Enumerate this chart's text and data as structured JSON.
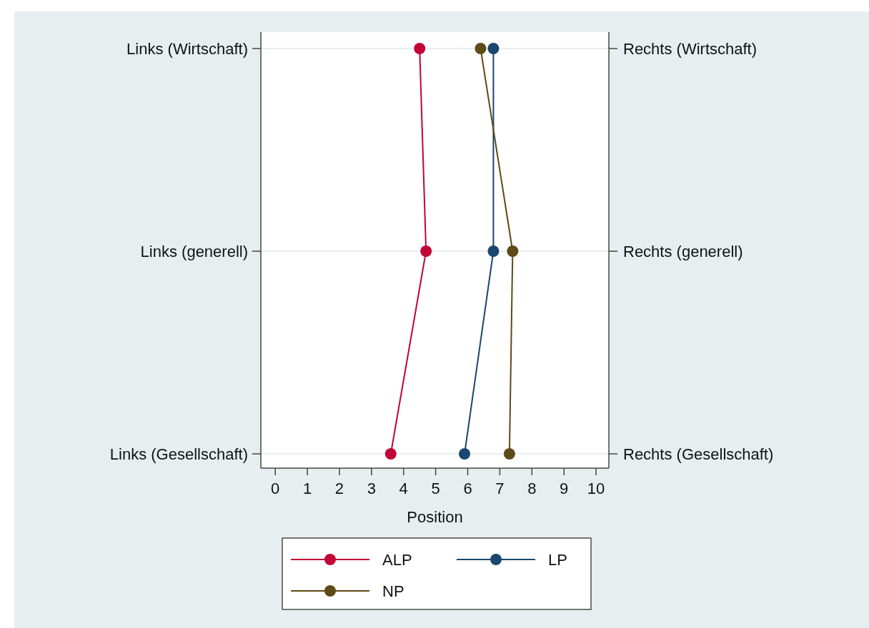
{
  "chart_data": {
    "type": "line",
    "orientation": "horizontal",
    "xlabel": "Position",
    "categories": [
      "Links (Wirtschaft)",
      "Links (generell)",
      "Links (Gesellschaft)"
    ],
    "y2_categories": [
      "Rechts (Wirtschaft)",
      "Rechts (generell)",
      "Rechts (Gesellschaft)"
    ],
    "series": [
      {
        "name": "ALP",
        "color": "#c10534",
        "values": [
          4.5,
          4.7,
          3.6
        ]
      },
      {
        "name": "LP",
        "color": "#1a476f",
        "values": [
          6.8,
          6.8,
          5.9
        ]
      },
      {
        "name": "NP",
        "color": "#5e4a16",
        "values": [
          6.4,
          7.4,
          7.3
        ]
      }
    ],
    "xlim": [
      -0.45,
      10.4
    ],
    "xticks": [
      0,
      1,
      2,
      3,
      4,
      5,
      6,
      7,
      8,
      9,
      10
    ],
    "grid": "y",
    "legend": "bottom",
    "marker": "circle",
    "line_style": "solid"
  }
}
